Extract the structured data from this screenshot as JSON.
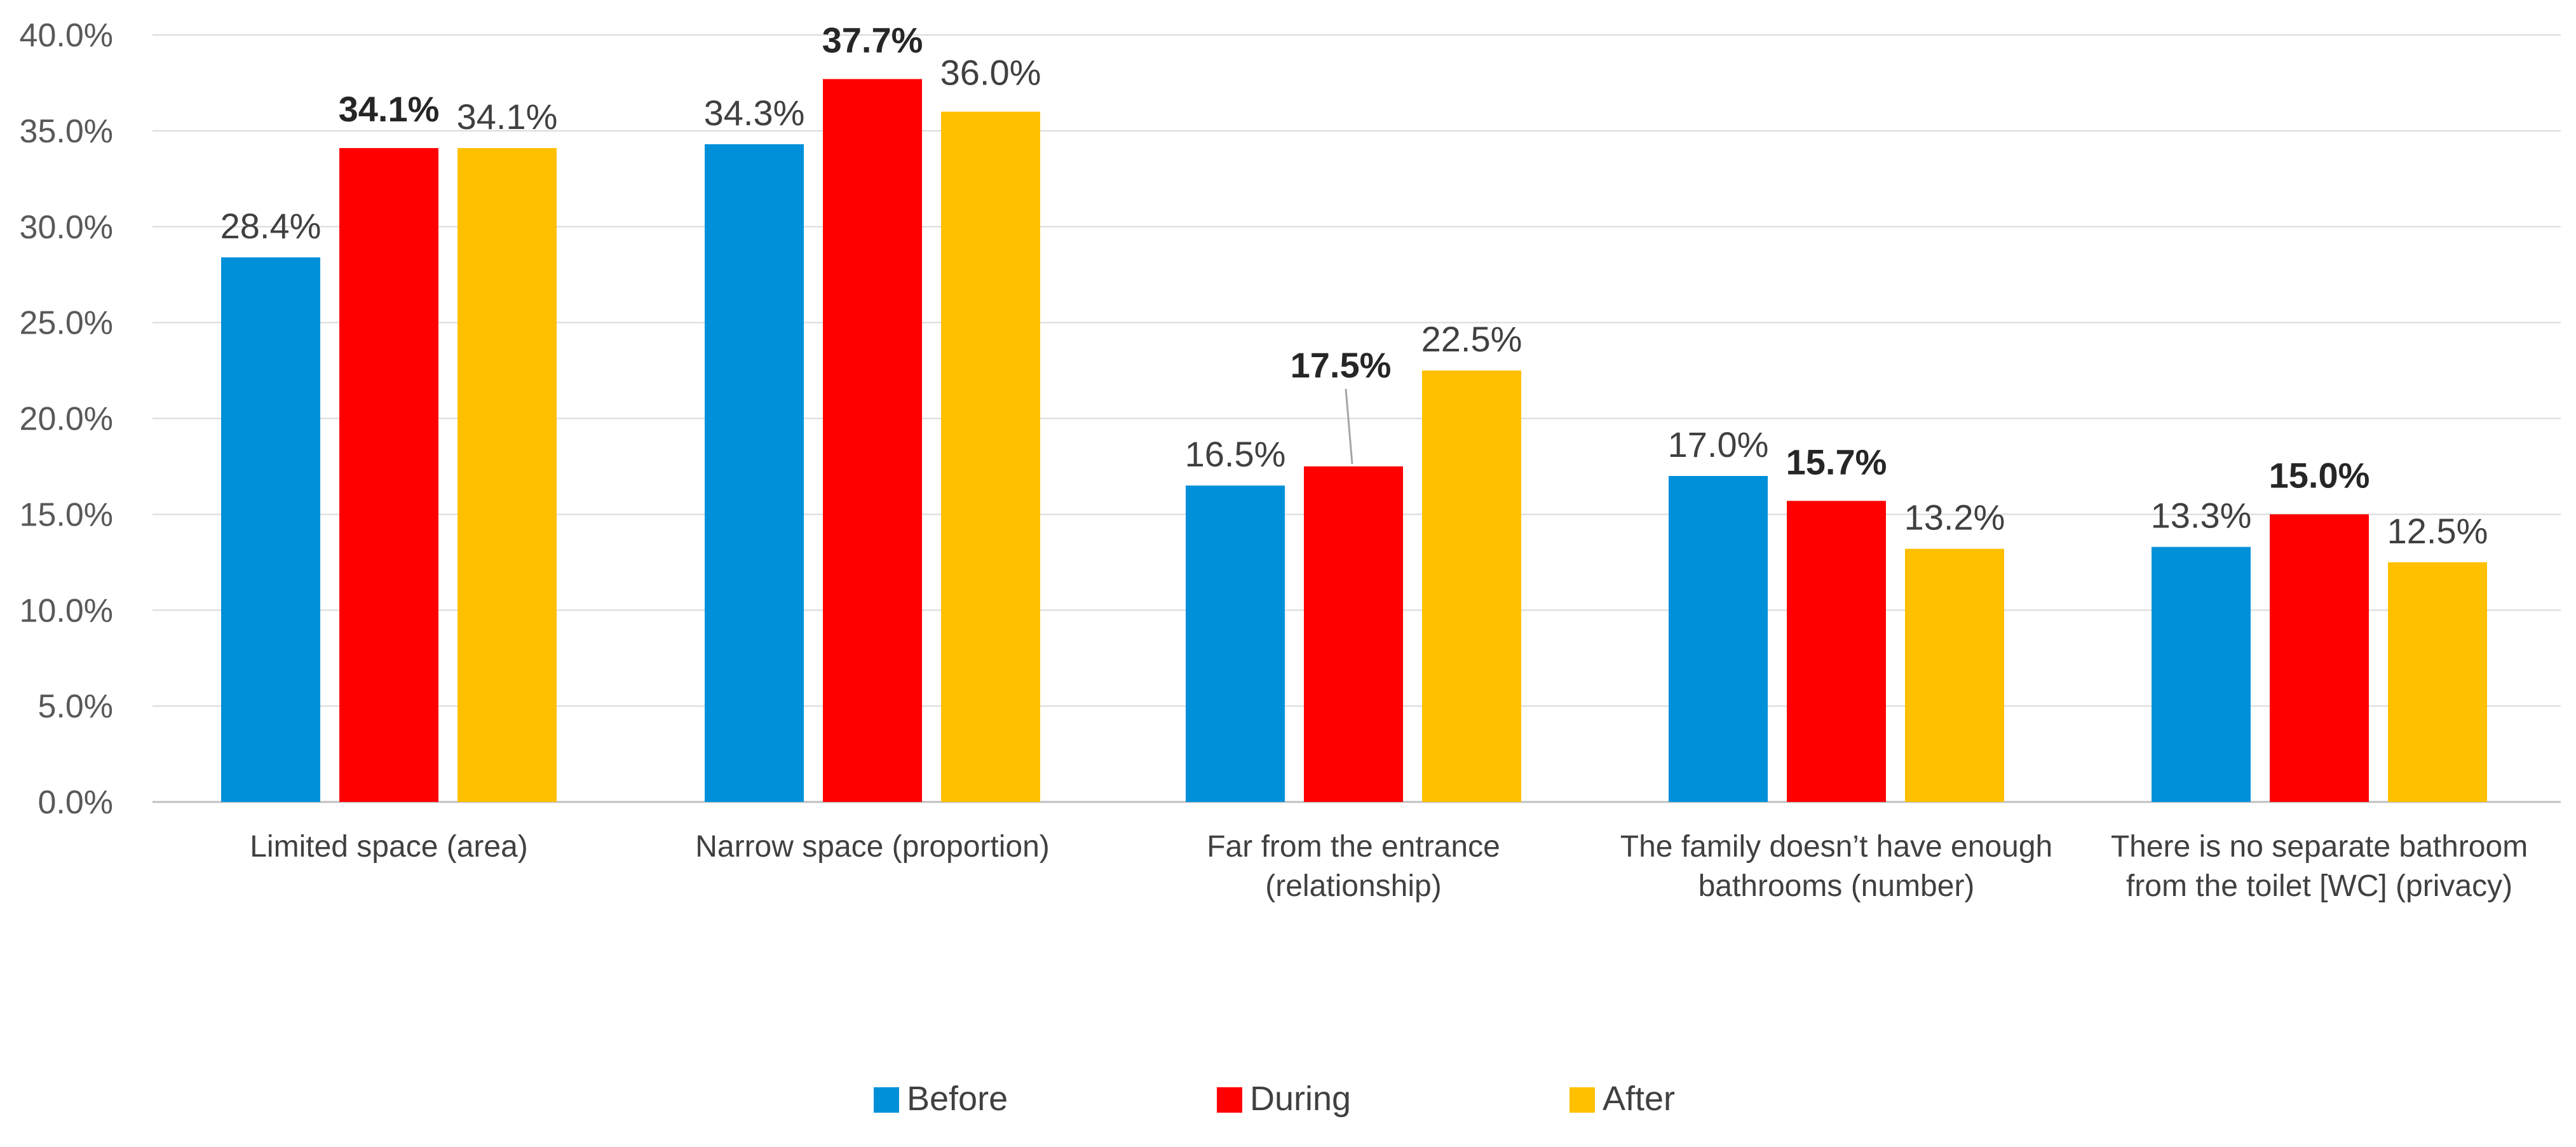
{
  "chart_data": {
    "type": "bar",
    "title": "",
    "xlabel": "",
    "ylabel": "",
    "ylim": [
      0,
      40
    ],
    "yticks": [
      "0.0%",
      "5.0%",
      "10.0%",
      "15.0%",
      "20.0%",
      "25.0%",
      "30.0%",
      "35.0%",
      "40.0%"
    ],
    "grid": true,
    "legend_position": "bottom",
    "categories": [
      [
        "Limited space (area)"
      ],
      [
        "Narrow space (proportion)"
      ],
      [
        "Far from the entrance",
        "(relationship)"
      ],
      [
        "The family doesn’t have enough",
        "bathrooms (number)"
      ],
      [
        "There is no separate bathroom",
        "from the toilet [WC] (privacy)"
      ]
    ],
    "series": [
      {
        "name": "Before",
        "color": "#0090DA",
        "values": [
          28.4,
          34.3,
          16.5,
          17.0,
          13.3
        ],
        "labels": [
          "28.4%",
          "34.3%",
          "16.5%",
          "17.0%",
          "13.3%"
        ],
        "bold": false
      },
      {
        "name": "During",
        "color": "#FF0000",
        "values": [
          34.1,
          37.7,
          17.5,
          15.7,
          15.0
        ],
        "labels": [
          "34.1%",
          "37.7%",
          "17.5%",
          "15.7%",
          "15.0%"
        ],
        "bold": true
      },
      {
        "name": "After",
        "color": "#FFC000",
        "values": [
          34.1,
          36.0,
          22.5,
          13.2,
          12.5
        ],
        "labels": [
          "34.1%",
          "36.0%",
          "22.5%",
          "13.2%",
          "12.5%"
        ],
        "bold": false
      }
    ]
  }
}
